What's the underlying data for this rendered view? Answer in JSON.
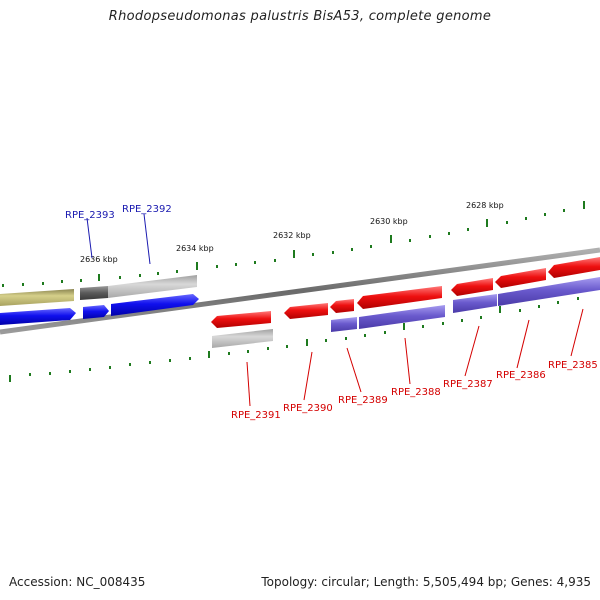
{
  "title": "Rhodopseudomonas palustris BisA53, complete genome",
  "accession": "Accession: NC_008435",
  "summary": "Topology: circular; Length: 5,505,494 bp; Genes: 4,935",
  "colors": {
    "backbone": "#7a7a7a",
    "tick": "#1e7a1e",
    "forward_cds": "#1010ee",
    "reverse_cds": "#ee1010",
    "reverse_cds_purple": "#6a5acd",
    "grey_feature": "#b8b8b8",
    "dark_grey_feature": "#6a6a6a",
    "olive_feature": "#b5b06a",
    "label_blue": "#1a1ab0",
    "label_red": "#d40000"
  },
  "kbp_labels": [
    "2636 kbp",
    "2634 kbp",
    "2632 kbp",
    "2630 kbp",
    "2628 kbp"
  ],
  "gene_labels_forward": [
    "RPE_2393",
    "RPE_2392"
  ],
  "gene_labels_reverse": [
    "RPE_2391",
    "RPE_2390",
    "RPE_2389",
    "RPE_2388",
    "RPE_2387",
    "RPE_2386",
    "RPE_2385"
  ]
}
